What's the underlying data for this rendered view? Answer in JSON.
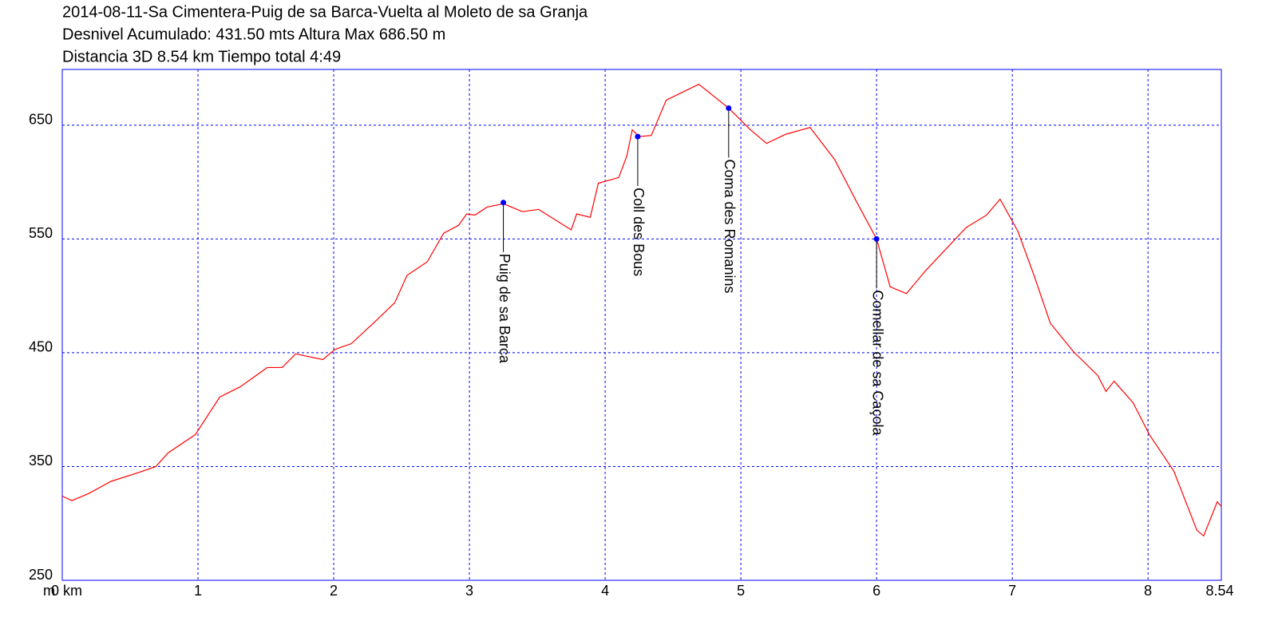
{
  "chart_data": {
    "type": "line",
    "title_lines": [
      "2014-08-11-Sa Cimentera-Puig de sa Barca-Vuelta al Moleto de sa Granja",
      "Desnivel Acumulado: 431.50 mts  Altura Max 686.50 m",
      "Distancia 3D 8.54 km  Tiempo total 4:49"
    ],
    "ylabel": "m",
    "xlim": [
      0,
      8.54
    ],
    "ylim": [
      250,
      699
    ],
    "xticks": [
      {
        "value": 0,
        "label": "0 km"
      },
      1,
      2,
      3,
      4,
      5,
      6,
      7,
      8,
      8.54
    ],
    "yticks": [
      250,
      350,
      450,
      550,
      650
    ],
    "grid": true,
    "grid_color": "#0000ff",
    "frame_color": "#0000ff",
    "series": [
      {
        "color": "#ff0000",
        "x": [
          0,
          0.07,
          0.19,
          0.36,
          0.57,
          0.69,
          0.78,
          0.98,
          1.16,
          1.31,
          1.51,
          1.62,
          1.72,
          1.84,
          1.92,
          2.01,
          2.13,
          2.31,
          2.45,
          2.54,
          2.69,
          2.81,
          2.92,
          2.98,
          3.04,
          3.13,
          3.25,
          3.39,
          3.51,
          3.75,
          3.79,
          3.89,
          3.95,
          4.1,
          4.16,
          4.2,
          4.25,
          4.34,
          4.45,
          4.69,
          4.91,
          5.07,
          5.19,
          5.33,
          5.51,
          5.69,
          5.86,
          6.0,
          6.1,
          6.22,
          6.36,
          6.66,
          6.81,
          6.91,
          7.04,
          7.16,
          7.28,
          7.45,
          7.63,
          7.69,
          7.75,
          7.89,
          8.01,
          8.19,
          8.36,
          8.41,
          8.51,
          8.54
        ],
        "values": [
          324,
          320,
          326,
          337,
          345,
          350,
          362,
          378,
          411,
          420,
          437,
          437,
          449,
          446,
          444,
          453,
          458,
          478,
          494,
          518,
          530,
          555,
          562,
          572,
          571,
          578,
          581,
          574,
          576,
          558,
          572,
          569,
          599,
          604,
          623,
          646,
          640,
          641,
          672,
          686,
          665,
          646,
          634,
          642,
          648,
          620,
          581,
          550,
          508,
          502,
          522,
          560,
          571,
          585,
          557,
          518,
          476,
          451,
          430,
          416,
          425,
          406,
          378,
          346,
          294,
          289,
          319,
          315
        ]
      }
    ],
    "markers": [
      {
        "label": "Puig de sa Barca",
        "x": 3.25,
        "y": 582
      },
      {
        "label": "Coll des Bous",
        "x": 4.24,
        "y": 640
      },
      {
        "label": "Coma des Romanins",
        "x": 4.91,
        "y": 665
      },
      {
        "label": "Comellar de sa Caçola",
        "x": 6.0,
        "y": 550
      }
    ],
    "marker_color": "#0000ff"
  }
}
